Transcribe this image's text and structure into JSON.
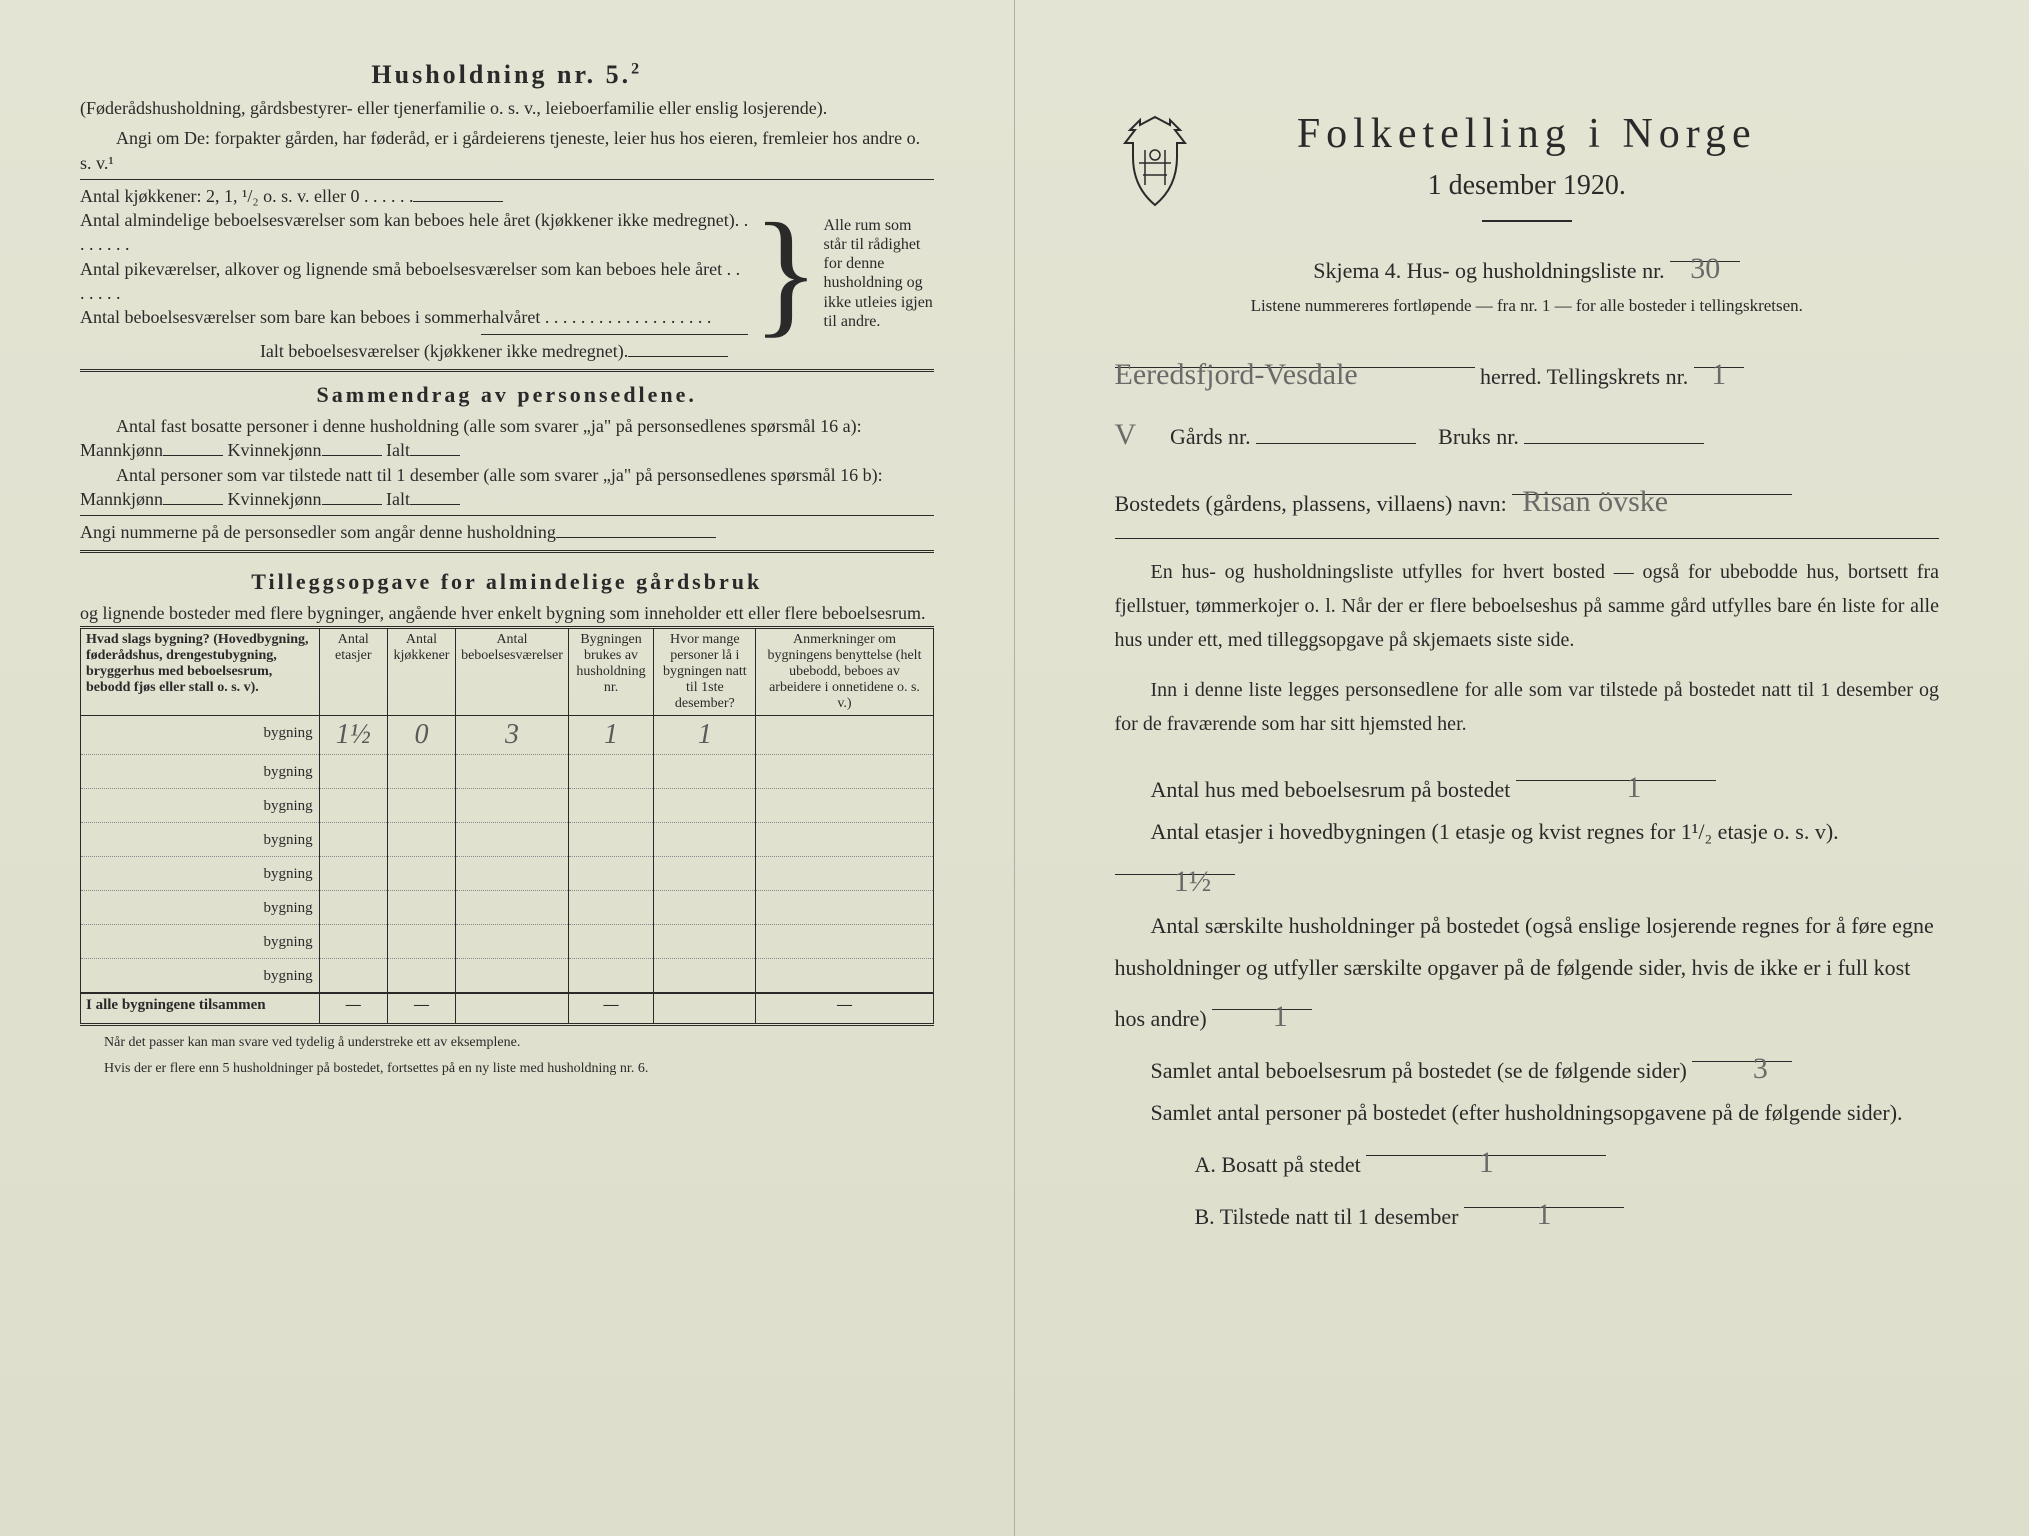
{
  "left": {
    "heading": "Husholdning nr. 5.",
    "heading_sup": "2",
    "intro1": "(Føderådshusholdning, gårdsbestyrer- eller tjenerfamilie o. s. v., leieboerfamilie eller enslig losjerende).",
    "intro2": "Angi om De: forpakter gården, har føderåd, er i gårdeierens tjeneste, leier hus hos eieren, fremleier hos andre o. s. v.¹",
    "kitchens_label": "Antal kjøkkener: 2, 1, ¹/₂ o. s. v. eller 0 . . . . . .",
    "rooms_label": "Antal almindelige beboelsesværelser som kan beboes hele året (kjøkkener ikke medregnet). . . . . . . .",
    "pike_label": "Antal pikeværelser, alkover og lignende små beboelsesværelser som kan beboes hele året . . . . . . .",
    "summer_label": "Antal beboelsesværelser som bare kan beboes i sommerhalvåret . . . . . . . . . . . . . . . . . . .",
    "ialt_label": "Ialt beboelsesværelser (kjøkkener ikke medregnet).",
    "brace_text": "Alle rum som står til rådighet for denne husholdning og ikke utleies igjen til andre.",
    "sammendrag_title": "Sammendrag av personsedlene.",
    "sammendrag_l1": "Antal fast bosatte personer i denne husholdning (alle som svarer „ja\" på personsedlenes spørsmål 16 a): Mannkjønn",
    "kvinne": "Kvinnekjønn",
    "ialt": "Ialt",
    "sammendrag_l2": "Antal personer som var tilstede natt til 1 desember (alle som svarer „ja\" på personsedlenes spørsmål 16 b): Mannkjønn",
    "angi_nummerne": "Angi nummerne på de personsedler som angår denne husholdning",
    "tillegg_title": "Tilleggsopgave for almindelige gårdsbruk",
    "tillegg_sub": "og lignende bosteder med flere bygninger, angående hver enkelt bygning som inneholder ett eller flere beboelsesrum.",
    "table": {
      "headers": [
        "Hvad slags bygning?\n(Hovedbygning, føderådshus, drengestubygning, bryggerhus med beboelsesrum, bebodd fjøs eller stall o. s. v).",
        "Antal etasjer",
        "Antal kjøkkener",
        "Antal beboelsesværelser",
        "Bygningen brukes av husholdning nr.",
        "Hvor mange personer lå i bygningen natt til 1ste desember?",
        "Anmerkninger om bygningens benyttelse (helt ubebodd, beboes av arbeidere i onnetidene o. s. v.)"
      ],
      "row_label": "bygning",
      "rows": [
        {
          "etasjer": "1½",
          "kjokken": "0",
          "rooms": "3",
          "hush": "1",
          "pers": "1",
          "anm": ""
        },
        {
          "etasjer": "",
          "kjokken": "",
          "rooms": "",
          "hush": "",
          "pers": "",
          "anm": ""
        },
        {
          "etasjer": "",
          "kjokken": "",
          "rooms": "",
          "hush": "",
          "pers": "",
          "anm": ""
        },
        {
          "etasjer": "",
          "kjokken": "",
          "rooms": "",
          "hush": "",
          "pers": "",
          "anm": ""
        },
        {
          "etasjer": "",
          "kjokken": "",
          "rooms": "",
          "hush": "",
          "pers": "",
          "anm": ""
        },
        {
          "etasjer": "",
          "kjokken": "",
          "rooms": "",
          "hush": "",
          "pers": "",
          "anm": ""
        },
        {
          "etasjer": "",
          "kjokken": "",
          "rooms": "",
          "hush": "",
          "pers": "",
          "anm": ""
        },
        {
          "etasjer": "",
          "kjokken": "",
          "rooms": "",
          "hush": "",
          "pers": "",
          "anm": ""
        }
      ],
      "footer_label": "I alle bygningene tilsammen",
      "dash": "—"
    },
    "footnote1": "Når det passer kan man svare ved tydelig å understreke ett av eksemplene.",
    "footnote2": "Hvis der er flere enn 5 husholdninger på bostedet, fortsettes på en ny liste med husholdning nr. 6."
  },
  "right": {
    "title": "Folketelling i Norge",
    "subtitle": "1 desember 1920.",
    "skjema": "Skjema 4.  Hus- og husholdningsliste nr.",
    "skjema_val": "30",
    "listene": "Listene nummereres fortløpende — fra nr. 1 — for alle bosteder i tellingskretsen.",
    "herred_val": "Eeredsfjord-Vesdale",
    "herred_label": "herred.   Tellingskrets nr.",
    "tellingskrets_val": "1",
    "gards_prefix": "V",
    "gards_label": "Gårds nr.",
    "bruks_label": "Bruks nr.",
    "bosted_label": "Bostedets (gårdens, plassens, villaens) navn:",
    "bosted_val": "Risan övske",
    "para1": "En hus- og husholdningsliste utfylles for hvert bosted — også for ubebodde hus, bortsett fra fjellstuer, tømmerkojer o. l.  Når der er flere beboelseshus på samme gård utfylles bare én liste for alle hus under ett, med tilleggsopgave på skjemaets siste side.",
    "para2": "Inn i denne liste legges personsedlene for alle som var tilstede på bostedet natt til 1 desember og for de fraværende som har sitt hjemsted her.",
    "q1": "Antal hus med beboelsesrum på bostedet",
    "q1_val": "1",
    "q2a": "Antal etasjer i hovedbygningen (1 etasje og kvist regnes for 1¹/₂ etasje o. s. v).",
    "q2_val": "1½",
    "q3": "Antal særskilte husholdninger på bostedet (også enslige losjerende regnes for å føre egne husholdninger og utfyller særskilte opgaver på de følgende sider, hvis de ikke er i full kost hos andre)",
    "q3_val": "1",
    "q4": "Samlet antal beboelsesrum på bostedet (se de følgende sider)",
    "q4_val": "3",
    "q5": "Samlet antal personer på bostedet (efter husholdningsopgavene på de følgende sider).",
    "qA": "A.  Bosatt på stedet",
    "qA_val": "1",
    "qB": "B.  Tilstede natt til 1 desember",
    "qB_val": "1"
  },
  "colors": {
    "paper": "#e4e4d4",
    "ink": "#2a2a2a",
    "pencil": "#6a6a68"
  }
}
